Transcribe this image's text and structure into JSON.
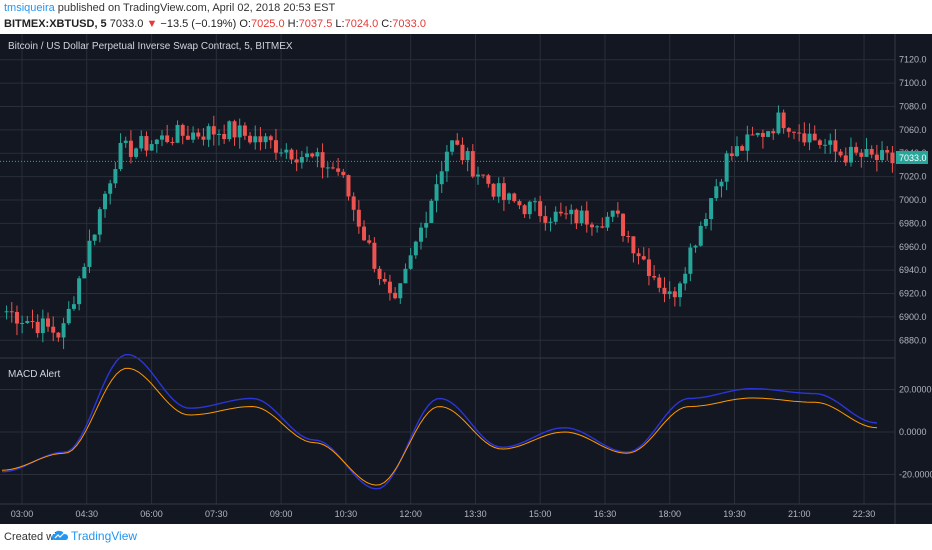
{
  "header": {
    "user": "tmsiqueira",
    "published": " published on TradingView.com, April 02, 2018 20:53 EST",
    "symbol": "BITMEX:XBTUSD, 5",
    "price": "7033.0",
    "change": "−13.5 (−0.19%)",
    "o_label": "O:",
    "o_val": "7025.0",
    "h_label": "H:",
    "h_val": "7037.5",
    "l_label": "L:",
    "l_val": "7024.0",
    "c_label": "C:",
    "c_val": "7033.0"
  },
  "main_pane": {
    "title": "Bitcoin / US Dollar Perpetual Inverse Swap Contract, 5, BITMEX",
    "price_badge": "7033.0",
    "y_ticks": [
      "7120.0",
      "7100.0",
      "7080.0",
      "7060.0",
      "7040.0",
      "7020.0",
      "7000.0",
      "6980.0",
      "6960.0",
      "6940.0",
      "6920.0",
      "6900.0",
      "6880.0"
    ]
  },
  "indicator_pane": {
    "title": "MACD Alert",
    "y_ticks": [
      "20.0000",
      "0.0000",
      "-20.0000"
    ]
  },
  "time_axis": [
    "03:00",
    "04:30",
    "06:00",
    "07:30",
    "09:00",
    "10:30",
    "12:00",
    "13:30",
    "15:00",
    "16:30",
    "18:00",
    "19:30",
    "21:00",
    "22:30"
  ],
  "footer": {
    "created": "Created with",
    "brand": "TradingView"
  },
  "colors": {
    "up": "#26a69a",
    "down": "#ef5350",
    "bg": "#131722",
    "macd": "#ff9800",
    "signal": "#2b35d8",
    "badge": "#26a69a"
  },
  "chart_data": {
    "type": "candlestick",
    "x": [
      "03:00",
      "04:30",
      "06:00",
      "07:30",
      "09:00",
      "10:30",
      "12:00",
      "13:30",
      "15:00",
      "16:30",
      "18:00",
      "19:30",
      "21:00",
      "22:30"
    ],
    "price_close": [
      6905,
      6885,
      7040,
      7055,
      7060,
      7045,
      7025,
      6905,
      7050,
      7000,
      6985,
      6985,
      6915,
      7035,
      7070,
      7040,
      7033
    ],
    "macd": [
      -18,
      -10,
      30,
      8,
      12,
      -5,
      -25,
      12,
      -8,
      0,
      -10,
      12,
      16,
      14,
      2
    ],
    "ylim_price": [
      6870,
      7130
    ],
    "ylim_macd": [
      -32,
      32
    ]
  }
}
